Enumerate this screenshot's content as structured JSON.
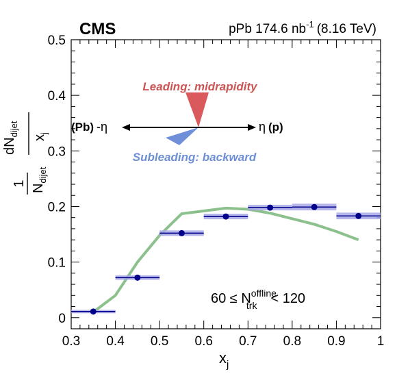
{
  "header": {
    "experiment": "CMS",
    "luminosity": "pPb 174.6 nb",
    "lumi_exp": "-1",
    "energy": "(8.16 TeV)"
  },
  "annotation": {
    "leading": "Leading: midrapidity",
    "subleading": "Subleading: backward",
    "left_label": "(Pb)",
    "left_eta": "-η",
    "right_eta": "η",
    "right_label": "(p)"
  },
  "selection": {
    "prefix": "60 ≤ N",
    "sup": "offline",
    "sub": "trk",
    "suffix": "< 120"
  },
  "axes": {
    "x_main": "x",
    "x_sub": "j",
    "y_one": "1",
    "y_den_main": "N",
    "y_den_sub": "dijet",
    "y_num_main": "dN",
    "y_num_sub": "dijet",
    "y_frac_den_main": "x",
    "y_frac_den_sub": "j"
  },
  "colors": {
    "data": "#00008b",
    "syst_band": "#a9a9e6",
    "model": "#8cc08c",
    "leading_triangle": "#d9595c",
    "subleading_triangle": "#6f8fd8"
  },
  "chart_data": {
    "type": "scatter",
    "xlim": [
      0.3,
      1.0
    ],
    "ylim": [
      -0.02,
      0.5
    ],
    "x_ticks": [
      "0.3",
      "0.4",
      "0.5",
      "0.6",
      "0.7",
      "0.8",
      "0.9",
      "1"
    ],
    "y_ticks": [
      "0",
      "0.1",
      "0.2",
      "0.3",
      "0.4",
      "0.5"
    ],
    "x_tick_values": [
      0.3,
      0.4,
      0.5,
      0.6,
      0.7,
      0.8,
      0.9,
      1.0
    ],
    "y_tick_values": [
      0,
      0.1,
      0.2,
      0.3,
      0.4,
      0.5
    ],
    "grid": false,
    "series": [
      {
        "x": [
          0.35,
          0.45,
          0.55,
          0.65,
          0.75,
          0.85,
          0.95
        ],
        "x_err": [
          0.05,
          0.05,
          0.05,
          0.05,
          0.05,
          0.05,
          0.05
        ],
        "y": [
          0.011,
          0.072,
          0.152,
          0.182,
          0.198,
          0.199,
          0.183
        ],
        "syst": [
          0.003,
          0.004,
          0.005,
          0.005,
          0.005,
          0.006,
          0.006
        ]
      },
      {
        "x": [
          0.35,
          0.4,
          0.45,
          0.5,
          0.55,
          0.6,
          0.65,
          0.7,
          0.75,
          0.8,
          0.85,
          0.9,
          0.95
        ],
        "y": [
          0.01,
          0.04,
          0.1,
          0.148,
          0.187,
          0.192,
          0.197,
          0.195,
          0.188,
          0.178,
          0.168,
          0.155,
          0.14
        ]
      }
    ]
  }
}
